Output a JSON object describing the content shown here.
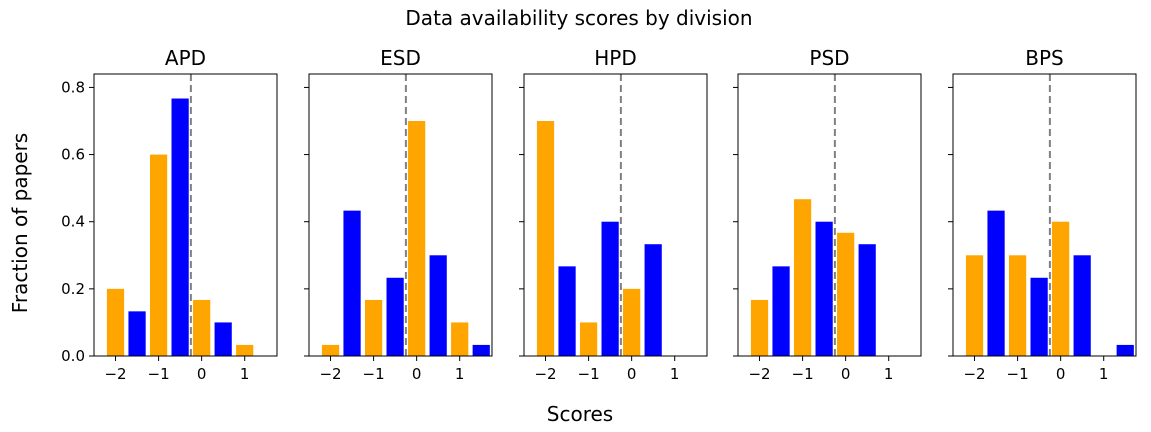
{
  "chart_data": {
    "type": "bar",
    "title": "Data availability scores by division",
    "xlabel": "Scores",
    "ylabel": "Fraction of papers",
    "xlim": [
      -2.5,
      1.75
    ],
    "ylim": [
      0,
      0.84
    ],
    "x_ticks": [
      -2,
      -1,
      0,
      1
    ],
    "x_tick_labels": [
      "−2",
      "−1",
      "0",
      "1"
    ],
    "y_ticks": [
      0.0,
      0.2,
      0.4,
      0.6,
      0.8
    ],
    "y_tick_labels": [
      "0.0",
      "0.2",
      "0.4",
      "0.6",
      "0.8"
    ],
    "reference_line_x": -0.25,
    "colors": {
      "orange": "#FFA500",
      "blue": "#0000FF",
      "reference": "#808080"
    },
    "panels": [
      {
        "title": "APD",
        "bars": [
          {
            "x": -2.0,
            "value": 0.2,
            "color": "orange"
          },
          {
            "x": -1.5,
            "value": 0.133,
            "color": "blue"
          },
          {
            "x": -1.0,
            "value": 0.6,
            "color": "orange"
          },
          {
            "x": -0.5,
            "value": 0.767,
            "color": "blue"
          },
          {
            "x": 0.0,
            "value": 0.167,
            "color": "orange"
          },
          {
            "x": 0.5,
            "value": 0.1,
            "color": "blue"
          },
          {
            "x": 1.0,
            "value": 0.033,
            "color": "orange"
          }
        ]
      },
      {
        "title": "ESD",
        "bars": [
          {
            "x": -2.0,
            "value": 0.033,
            "color": "orange"
          },
          {
            "x": -1.5,
            "value": 0.433,
            "color": "blue"
          },
          {
            "x": -1.0,
            "value": 0.167,
            "color": "orange"
          },
          {
            "x": -0.5,
            "value": 0.233,
            "color": "blue"
          },
          {
            "x": 0.0,
            "value": 0.7,
            "color": "orange"
          },
          {
            "x": 0.5,
            "value": 0.3,
            "color": "blue"
          },
          {
            "x": 1.0,
            "value": 0.1,
            "color": "orange"
          },
          {
            "x": 1.5,
            "value": 0.033,
            "color": "blue"
          }
        ]
      },
      {
        "title": "HPD",
        "bars": [
          {
            "x": -2.0,
            "value": 0.7,
            "color": "orange"
          },
          {
            "x": -1.5,
            "value": 0.267,
            "color": "blue"
          },
          {
            "x": -1.0,
            "value": 0.1,
            "color": "orange"
          },
          {
            "x": -0.5,
            "value": 0.4,
            "color": "blue"
          },
          {
            "x": 0.0,
            "value": 0.2,
            "color": "orange"
          },
          {
            "x": 0.5,
            "value": 0.333,
            "color": "blue"
          }
        ]
      },
      {
        "title": "PSD",
        "bars": [
          {
            "x": -2.0,
            "value": 0.167,
            "color": "orange"
          },
          {
            "x": -1.5,
            "value": 0.267,
            "color": "blue"
          },
          {
            "x": -1.0,
            "value": 0.467,
            "color": "orange"
          },
          {
            "x": -0.5,
            "value": 0.4,
            "color": "blue"
          },
          {
            "x": 0.0,
            "value": 0.367,
            "color": "orange"
          },
          {
            "x": 0.5,
            "value": 0.333,
            "color": "blue"
          }
        ]
      },
      {
        "title": "BPS",
        "bars": [
          {
            "x": -2.0,
            "value": 0.3,
            "color": "orange"
          },
          {
            "x": -1.5,
            "value": 0.433,
            "color": "blue"
          },
          {
            "x": -1.0,
            "value": 0.3,
            "color": "orange"
          },
          {
            "x": -0.5,
            "value": 0.233,
            "color": "blue"
          },
          {
            "x": 0.0,
            "value": 0.4,
            "color": "orange"
          },
          {
            "x": 0.5,
            "value": 0.3,
            "color": "blue"
          },
          {
            "x": 1.5,
            "value": 0.033,
            "color": "blue"
          }
        ]
      }
    ]
  }
}
